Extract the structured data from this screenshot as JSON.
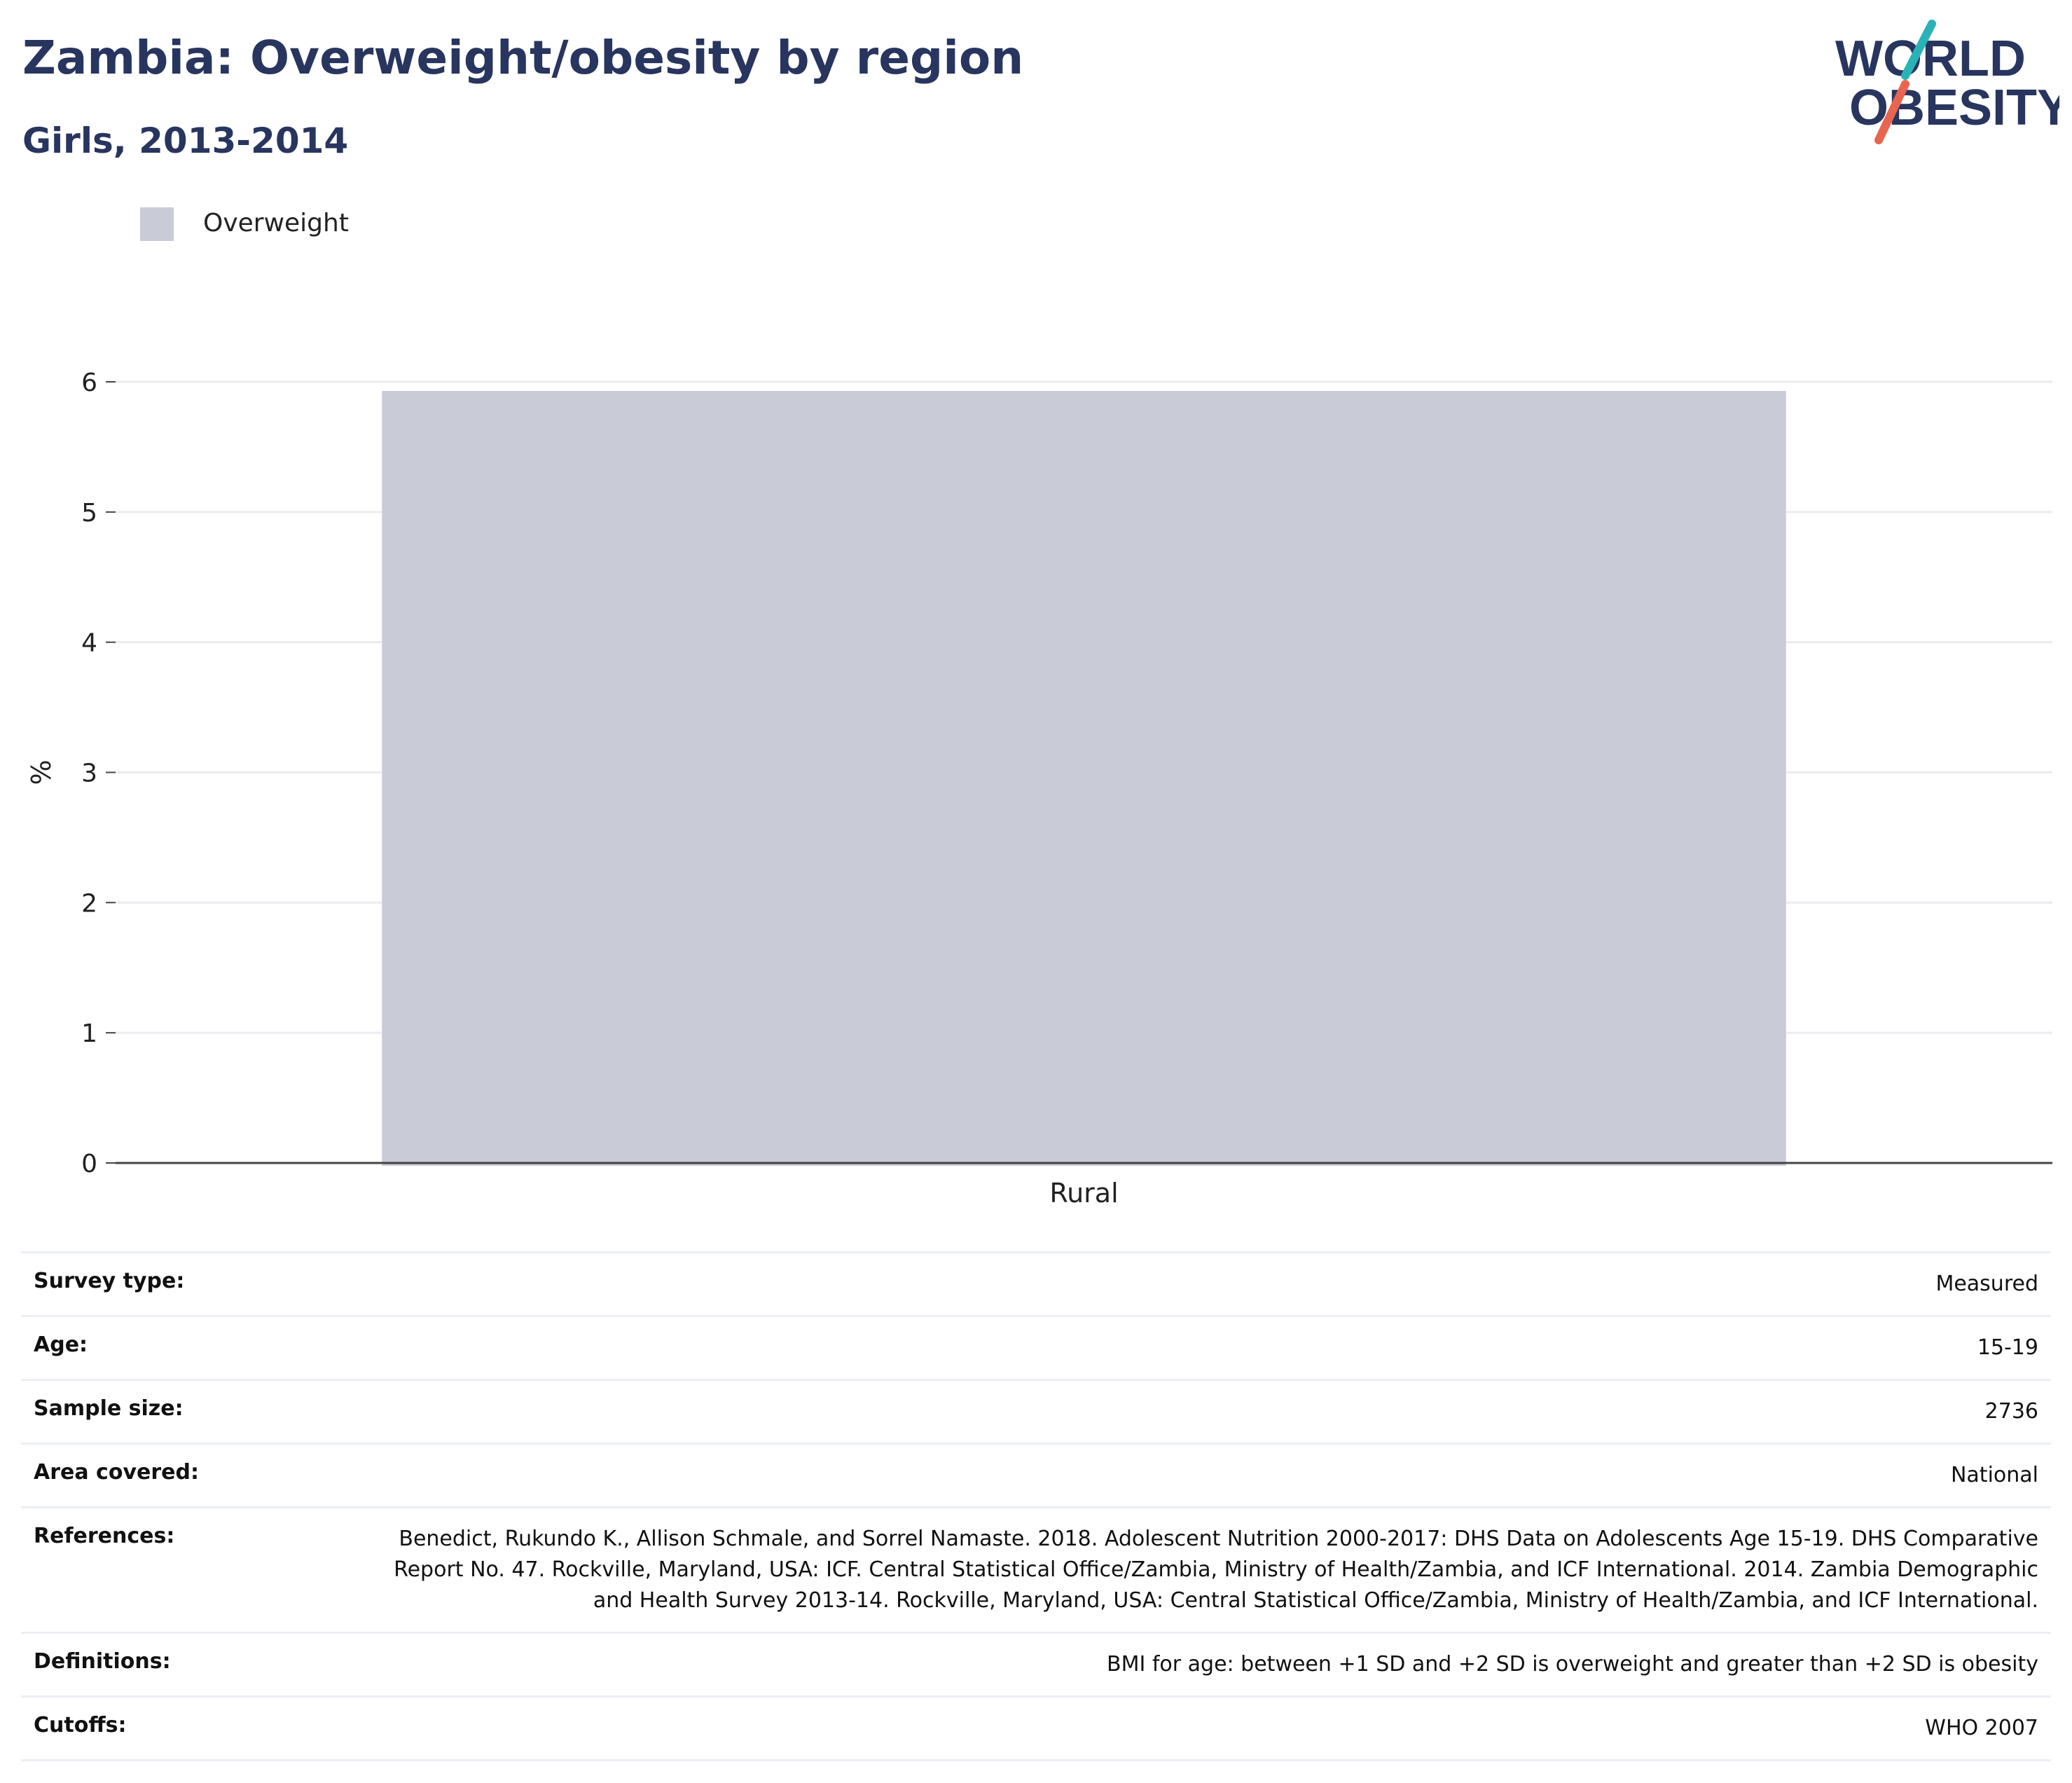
{
  "header": {
    "title": "Zambia: Overweight/obesity by region",
    "subtitle": "Girls, 2013-2014"
  },
  "logo": {
    "line1": "WORLD",
    "line2": "OBESITY",
    "colors": {
      "text": "#28355f",
      "slash_top": "#2ab3b6",
      "slash_bottom": "#e8654f"
    }
  },
  "legend": {
    "items": [
      {
        "label": "Overweight",
        "color": "#c9ccd7"
      }
    ]
  },
  "chart_data": {
    "type": "bar",
    "categories": [
      "Rural"
    ],
    "series": [
      {
        "name": "Overweight",
        "values": [
          5.93
        ],
        "color": "#c9ccd7"
      }
    ],
    "ylabel": "%",
    "xlabel": "",
    "ylim": [
      0,
      6
    ],
    "yticks": [
      0,
      1,
      2,
      3,
      4,
      5,
      6
    ],
    "grid": true,
    "legend_position": "top-left"
  },
  "info": {
    "rows": [
      {
        "label": "Survey type:",
        "value": "Measured"
      },
      {
        "label": "Age:",
        "value": "15-19"
      },
      {
        "label": "Sample size:",
        "value": "2736"
      },
      {
        "label": "Area covered:",
        "value": "National"
      },
      {
        "label": "References:",
        "value": "Benedict, Rukundo K., Allison Schmale, and Sorrel Namaste. 2018. Adolescent Nutrition 2000-2017: DHS Data on Adolescents Age 15-19. DHS Comparative Report No. 47. Rockville, Maryland, USA: ICF. Central Statistical Office/Zambia, Ministry of Health/Zambia, and ICF International. 2014. Zambia Demographic and Health Survey 2013-14. Rockville, Maryland, USA: Central Statistical Office/Zambia, Ministry of Health/Zambia, and ICF International."
      },
      {
        "label": "Definitions:",
        "value": "BMI for age: between +1 SD and +2 SD is overweight and greater than +2 SD is obesity"
      },
      {
        "label": "Cutoffs:",
        "value": "WHO 2007"
      }
    ]
  }
}
